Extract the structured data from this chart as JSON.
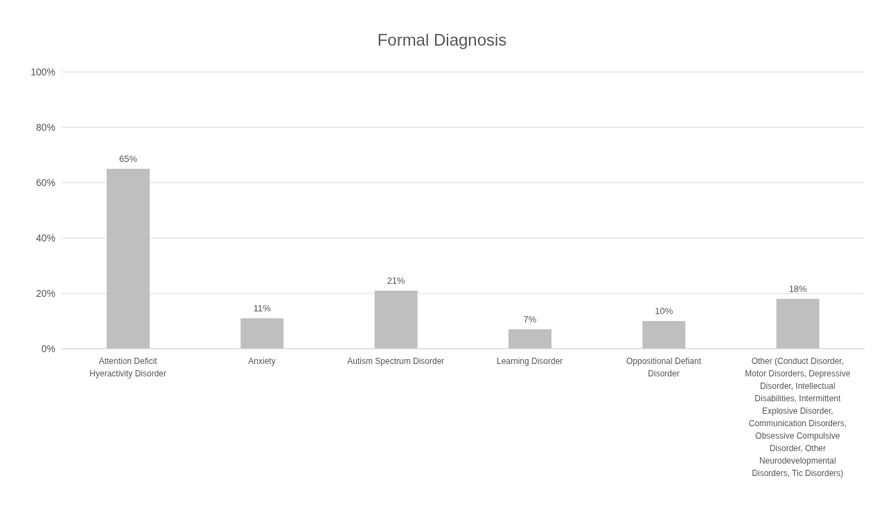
{
  "chart_data": {
    "type": "bar",
    "title": "Formal Diagnosis",
    "categories": [
      "Attention Deficit Hyeractivity Disorder",
      "Anxiety",
      "Autism Spectrum Disorder",
      "Learning Disorder",
      "Oppositional Defiant Disorder",
      "Other (Conduct Disorder, Motor Disorders, Depressive Disorder, Intellectual Disabilities, Intermittent Explosive Disorder, Communication Disorders, Obsessive Compulsive Disorder, Other Neurodevelopmental Disorders, Tic Disorders)"
    ],
    "values": [
      65,
      11,
      21,
      7,
      10,
      18
    ],
    "value_labels": [
      "65%",
      "11%",
      "21%",
      "7%",
      "10%",
      "18%"
    ],
    "color": "#bfbfbf",
    "ylim": [
      0,
      100
    ],
    "yticks": [
      {
        "value": 0,
        "label": "0%"
      },
      {
        "value": 20,
        "label": "20%"
      },
      {
        "value": 40,
        "label": "40%"
      },
      {
        "value": 60,
        "label": "60%"
      },
      {
        "value": 80,
        "label": "80%"
      },
      {
        "value": 100,
        "label": "100%"
      }
    ],
    "grid": "y"
  }
}
